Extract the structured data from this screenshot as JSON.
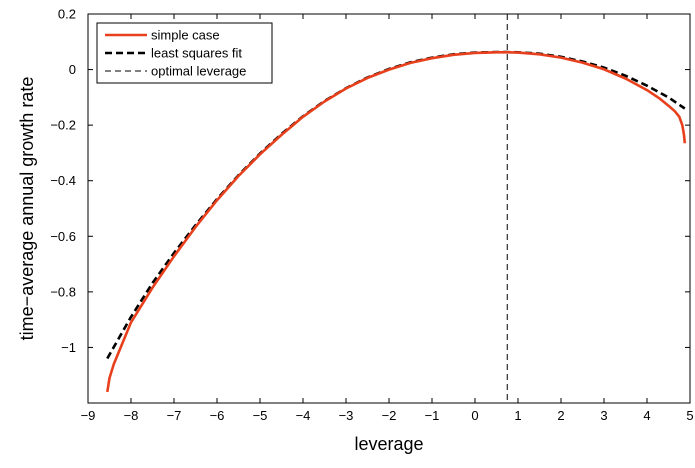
{
  "chart_data": {
    "type": "line",
    "title": "",
    "xlabel": "leverage",
    "ylabel": "time−average annual growth rate",
    "xlim": [
      -9,
      5
    ],
    "ylim": [
      -1.2,
      0.2
    ],
    "x_ticks": [
      -9,
      -8,
      -7,
      -6,
      -5,
      -4,
      -3,
      -2,
      -1,
      0,
      1,
      2,
      3,
      4,
      5
    ],
    "x_tick_labels": [
      "−9",
      "−8",
      "−7",
      "−6",
      "−5",
      "−4",
      "−3",
      "−2",
      "−1",
      "0",
      "1",
      "2",
      "3",
      "4",
      "5"
    ],
    "y_ticks": [
      0.2,
      0,
      -0.2,
      -0.4,
      -0.6,
      -0.8,
      -1
    ],
    "y_tick_labels": [
      "0.2",
      "0",
      "−0.2",
      "−0.4",
      "−0.6",
      "−0.8",
      "−1"
    ],
    "grid": false,
    "legend_position": "top-left",
    "series": [
      {
        "name": "simple case",
        "color": "#e8401c",
        "style": "solid",
        "points": [
          [
            -8.55,
            -1.16
          ],
          [
            -8.5,
            -1.11
          ],
          [
            -8.4,
            -1.06
          ],
          [
            -8.2,
            -0.985
          ],
          [
            -8.0,
            -0.91
          ],
          [
            -7.5,
            -0.785
          ],
          [
            -7.0,
            -0.672
          ],
          [
            -6.5,
            -0.567
          ],
          [
            -6.0,
            -0.47
          ],
          [
            -5.5,
            -0.383
          ],
          [
            -5.0,
            -0.305
          ],
          [
            -4.5,
            -0.235
          ],
          [
            -4.0,
            -0.17
          ],
          [
            -3.5,
            -0.115
          ],
          [
            -3.0,
            -0.068
          ],
          [
            -2.5,
            -0.03
          ],
          [
            -2.0,
            0.0
          ],
          [
            -1.5,
            0.024
          ],
          [
            -1.0,
            0.041
          ],
          [
            -0.5,
            0.053
          ],
          [
            0.0,
            0.06
          ],
          [
            0.5,
            0.062
          ],
          [
            0.75,
            0.062
          ],
          [
            1.0,
            0.061
          ],
          [
            1.5,
            0.055
          ],
          [
            2.0,
            0.043
          ],
          [
            2.5,
            0.025
          ],
          [
            3.0,
            0.001
          ],
          [
            3.5,
            -0.032
          ],
          [
            4.0,
            -0.074
          ],
          [
            4.3,
            -0.105
          ],
          [
            4.5,
            -0.13
          ],
          [
            4.65,
            -0.15
          ],
          [
            4.75,
            -0.17
          ],
          [
            4.82,
            -0.2
          ],
          [
            4.86,
            -0.235
          ],
          [
            4.88,
            -0.265
          ]
        ]
      },
      {
        "name": "least squares fit",
        "color": "#000000",
        "style": "dashed",
        "points": [
          [
            -8.55,
            -1.04
          ],
          [
            -8.0,
            -0.89
          ],
          [
            -7.5,
            -0.768
          ],
          [
            -7.0,
            -0.66
          ],
          [
            -6.5,
            -0.56
          ],
          [
            -6.0,
            -0.466
          ],
          [
            -5.5,
            -0.38
          ],
          [
            -5.0,
            -0.302
          ],
          [
            -4.5,
            -0.232
          ],
          [
            -4.0,
            -0.168
          ],
          [
            -3.5,
            -0.113
          ],
          [
            -3.0,
            -0.067
          ],
          [
            -2.5,
            -0.028
          ],
          [
            -2.0,
            0.002
          ],
          [
            -1.5,
            0.026
          ],
          [
            -1.0,
            0.043
          ],
          [
            -0.5,
            0.055
          ],
          [
            0.0,
            0.061
          ],
          [
            0.5,
            0.063
          ],
          [
            0.75,
            0.063
          ],
          [
            1.0,
            0.062
          ],
          [
            1.5,
            0.057
          ],
          [
            2.0,
            0.046
          ],
          [
            2.5,
            0.029
          ],
          [
            3.0,
            0.007
          ],
          [
            3.5,
            -0.022
          ],
          [
            4.0,
            -0.058
          ],
          [
            4.5,
            -0.1
          ],
          [
            4.88,
            -0.14
          ]
        ]
      },
      {
        "name": "optimal leverage",
        "color": "#000000",
        "style": "thin-dashed",
        "vertical_x": 0.75
      }
    ]
  }
}
